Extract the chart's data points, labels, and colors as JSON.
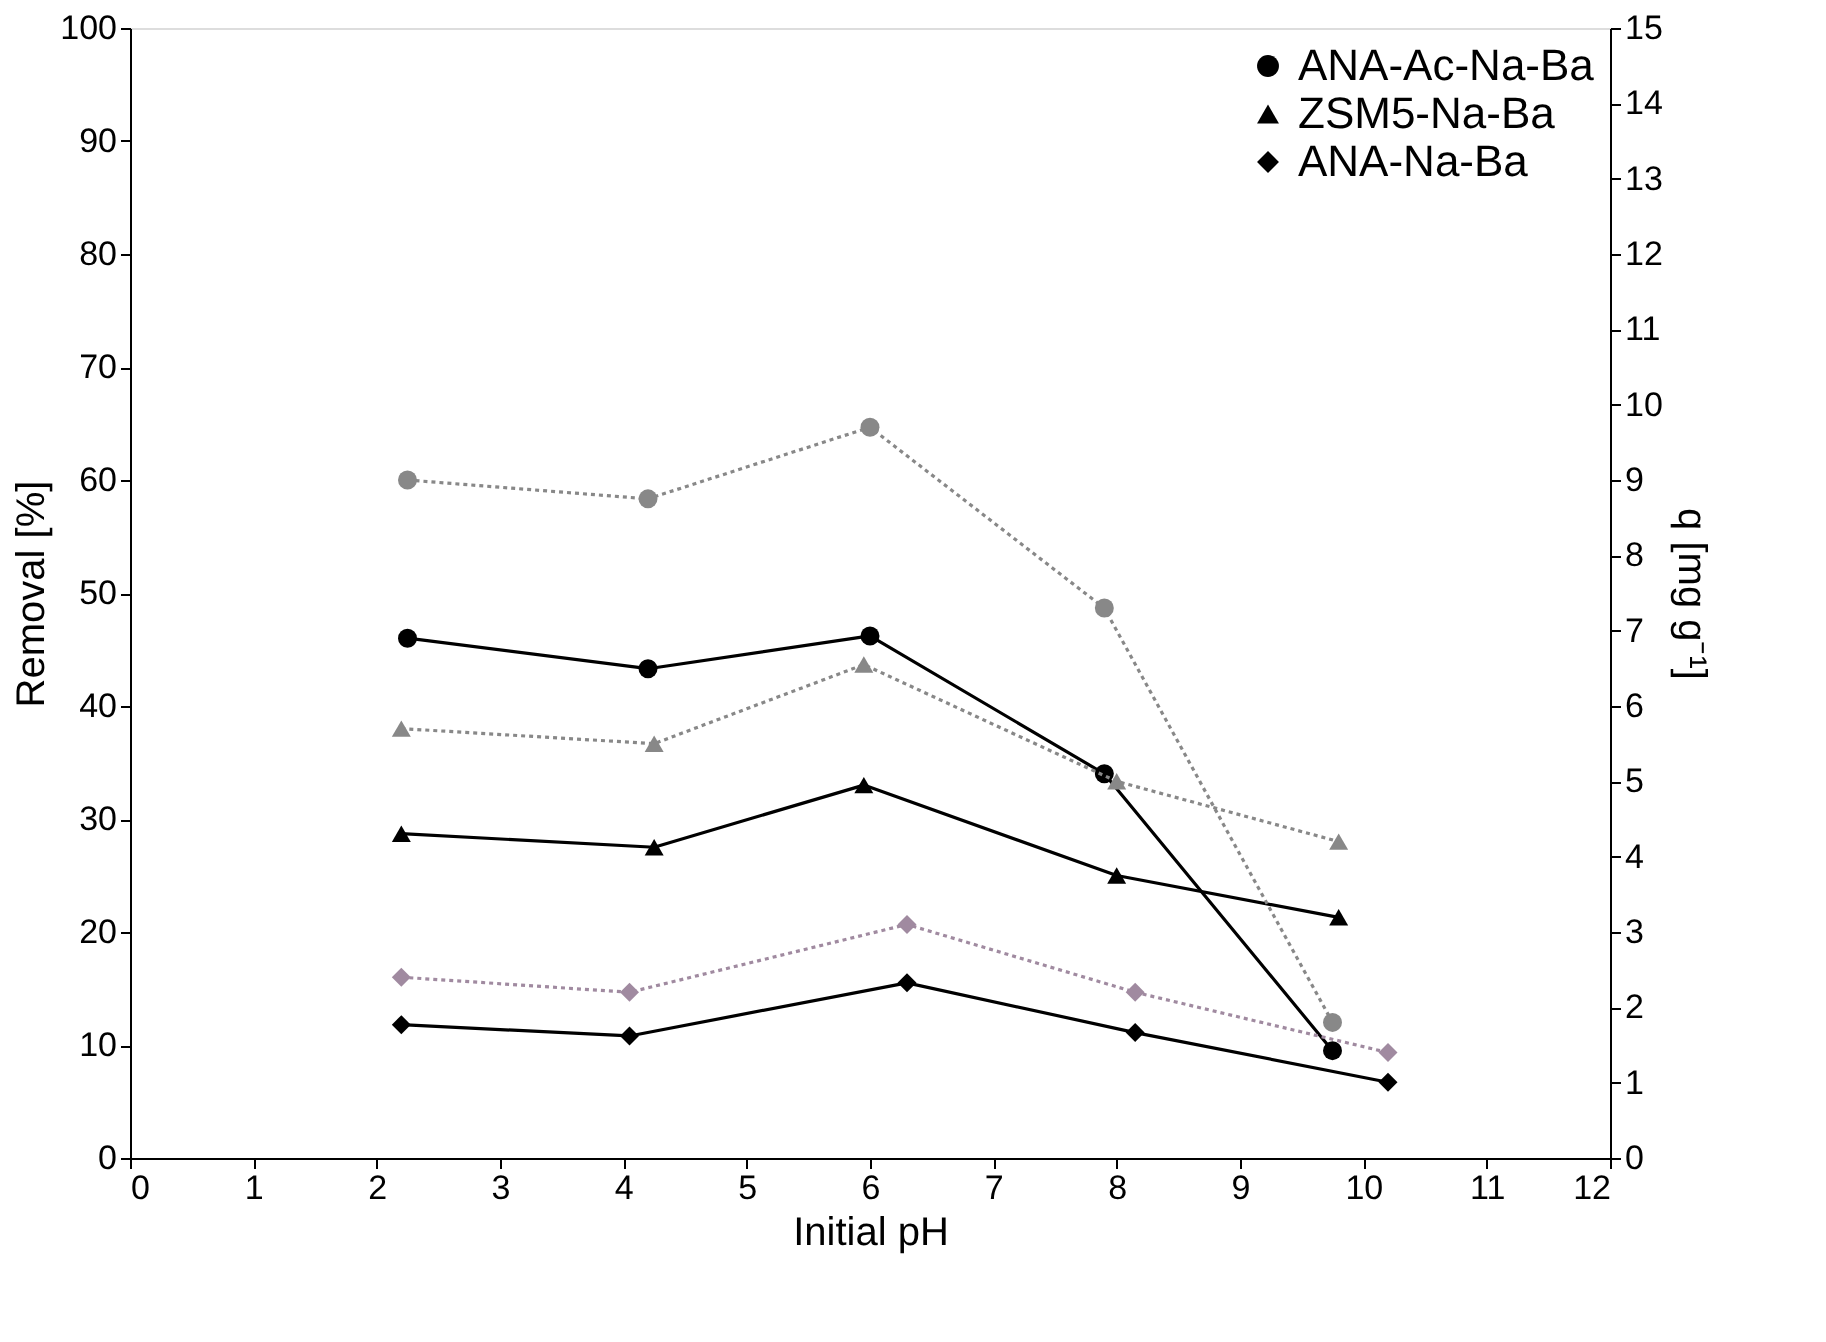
{
  "chart_data": {
    "type": "line",
    "xlabel": "Initial pH",
    "ylabel": "Removal [%]",
    "y2label": "q [mg g⁻¹]",
    "xlim": [
      0,
      12
    ],
    "xticks": [
      0,
      1,
      2,
      3,
      4,
      5,
      6,
      7,
      8,
      9,
      10,
      11,
      12
    ],
    "ylim": [
      0,
      100
    ],
    "yticks": [
      0,
      10,
      20,
      30,
      40,
      50,
      60,
      70,
      80,
      90,
      100
    ],
    "y2lim": [
      0,
      15
    ],
    "y2ticks": [
      0,
      1,
      2,
      3,
      4,
      5,
      6,
      7,
      8,
      9,
      10,
      11,
      12,
      13,
      14,
      15
    ],
    "grid": false,
    "legend": "top right",
    "series": [
      {
        "name": "ANA-Ac-Na-Ba",
        "color": "#000000",
        "marker": "circle",
        "line_style": "solid",
        "x": [
          2.25,
          4.2,
          6.0,
          7.9,
          9.75
        ],
        "values": [
          46,
          43.3,
          46.2,
          34,
          9.5
        ]
      },
      {
        "name": "ZSM5-Na-Ba",
        "color": "#000000",
        "marker": "triangle",
        "line_style": "solid",
        "x": [
          2.2,
          4.25,
          5.95,
          8.0,
          9.8
        ],
        "values": [
          28.7,
          27.5,
          33,
          25,
          21.3
        ]
      },
      {
        "name": "ANA-Na-Ba",
        "color": "#000000",
        "marker": "diamond",
        "line_style": "solid",
        "x": [
          2.2,
          4.05,
          6.3,
          8.15,
          10.2
        ],
        "values": [
          11.8,
          10.8,
          15.5,
          11.1,
          6.7
        ]
      },
      {
        "color": "#888888",
        "marker": "circle",
        "line_style": "dotted",
        "axis": "y2",
        "x": [
          2.25,
          4.2,
          6.0,
          7.9,
          9.75
        ],
        "values": [
          9.0,
          8.75,
          9.7,
          7.3,
          1.8
        ]
      },
      {
        "color": "#888888",
        "marker": "triangle",
        "line_style": "dotted",
        "axis": "y2",
        "x": [
          2.2,
          4.25,
          5.95,
          8.0,
          9.8
        ],
        "values": [
          5.7,
          5.5,
          6.55,
          5.0,
          4.2
        ]
      },
      {
        "color": "#a08aa0",
        "marker": "diamond",
        "line_style": "dotted",
        "axis": "y2",
        "x": [
          2.2,
          4.05,
          6.3,
          8.15,
          10.2
        ],
        "values": [
          2.4,
          2.2,
          3.1,
          2.2,
          1.4
        ]
      }
    ]
  }
}
